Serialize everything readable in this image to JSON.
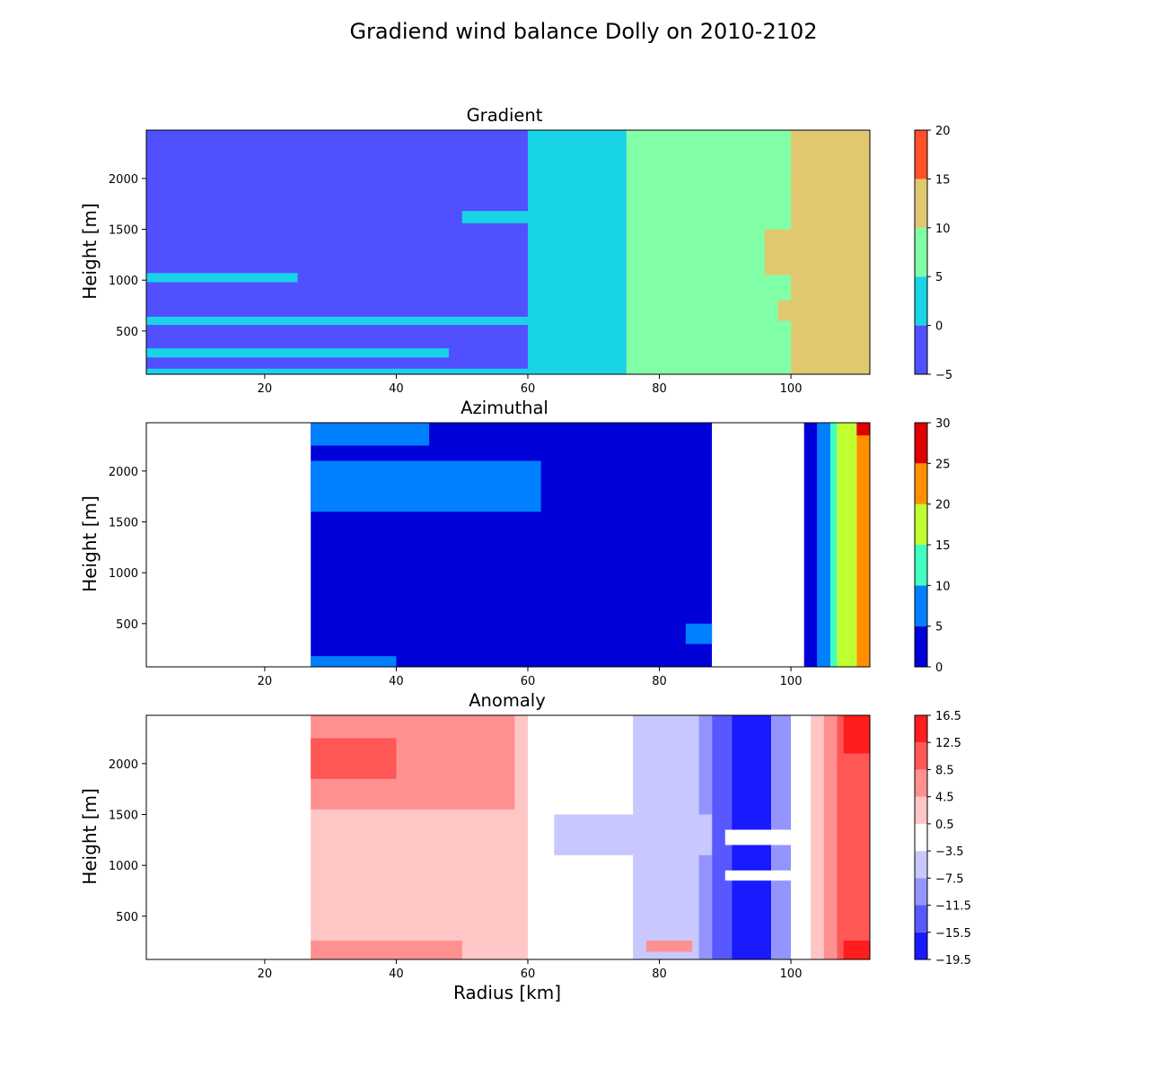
{
  "suptitle": "Gradiend wind balance Dolly on 2010-2102",
  "chart_data": [
    {
      "type": "heatmap",
      "title": "Gradient",
      "ylabel": "Height [m]",
      "xlabel": "",
      "xlim": [
        2,
        112
      ],
      "ylim": [
        75,
        2475
      ],
      "xticks": [
        20,
        40,
        60,
        80,
        100
      ],
      "yticks": [
        500,
        1000,
        1500,
        2000
      ],
      "colorbar": {
        "ticks": [
          "−5",
          "0",
          "5",
          "10",
          "15",
          "20"
        ],
        "colors": [
          "#5050ff",
          "#19d3e6",
          "#80ffa6",
          "#e0c870",
          "#ff5028"
        ]
      },
      "bands": [
        {
          "to": 60,
          "level": 0
        },
        {
          "to": 75,
          "level": 1
        },
        {
          "to": 100,
          "level": 2
        },
        {
          "to": 112,
          "level": 3
        }
      ],
      "blobs": [
        {
          "x": [
            2,
            63
          ],
          "y": [
            80,
            130
          ],
          "level": 1
        },
        {
          "x": [
            2,
            48
          ],
          "y": [
            240,
            330
          ],
          "level": 1
        },
        {
          "x": [
            2,
            60
          ],
          "y": [
            560,
            640
          ],
          "level": 1
        },
        {
          "x": [
            2,
            25
          ],
          "y": [
            980,
            1070
          ],
          "level": 1
        },
        {
          "x": [
            50,
            70
          ],
          "y": [
            1560,
            1680
          ],
          "level": 1
        },
        {
          "x": [
            96,
            112
          ],
          "y": [
            1050,
            1500
          ],
          "level": 3
        },
        {
          "x": [
            98,
            112
          ],
          "y": [
            600,
            800
          ],
          "level": 3
        },
        {
          "x": [
            100,
            112
          ],
          "y": [
            1900,
            2100
          ],
          "level": 3
        }
      ]
    },
    {
      "type": "heatmap",
      "title": "Azimuthal",
      "ylabel": "Height [m]",
      "xlabel": "",
      "xlim": [
        2,
        112
      ],
      "ylim": [
        75,
        2475
      ],
      "xticks": [
        20,
        40,
        60,
        80,
        100
      ],
      "yticks": [
        500,
        1000,
        1500,
        2000
      ],
      "colorbar": {
        "ticks": [
          "0",
          "5",
          "10",
          "15",
          "20",
          "25",
          "30"
        ],
        "colors": [
          "#0000d8",
          "#0080ff",
          "#40ffc0",
          "#c0ff30",
          "#ff9000",
          "#e00000"
        ]
      },
      "no_data_below_x": 27,
      "bands": [
        {
          "to": 88,
          "level": 0
        },
        {
          "to": 102,
          "level": "none"
        },
        {
          "to": 104,
          "level": 0
        },
        {
          "to": 106,
          "level": 1
        },
        {
          "to": 107,
          "level": 2
        },
        {
          "to": 110,
          "level": 3
        },
        {
          "to": 112,
          "level": 4
        }
      ],
      "blobs": [
        {
          "x": [
            27,
            62
          ],
          "y": [
            1600,
            2100
          ],
          "level": 1
        },
        {
          "x": [
            27,
            45
          ],
          "y": [
            2250,
            2470
          ],
          "level": 1
        },
        {
          "x": [
            27,
            40
          ],
          "y": [
            75,
            180
          ],
          "level": 1
        },
        {
          "x": [
            84,
            88
          ],
          "y": [
            300,
            500
          ],
          "level": 1
        },
        {
          "x": [
            110,
            112
          ],
          "y": [
            2350,
            2475
          ],
          "level": 5
        }
      ]
    },
    {
      "type": "heatmap",
      "title": "Anomaly",
      "ylabel": "Height [m]",
      "xlabel": "Radius [km]",
      "xlim": [
        2,
        112
      ],
      "ylim": [
        75,
        2475
      ],
      "xticks": [
        20,
        40,
        60,
        80,
        100
      ],
      "yticks": [
        500,
        1000,
        1500,
        2000
      ],
      "colorbar": {
        "ticks": [
          "−19.5",
          "−15.5",
          "−11.5",
          "−7.5",
          "−3.5",
          "0.5",
          "4.5",
          "8.5",
          "12.5",
          "16.5"
        ],
        "colors": [
          "#1a1aff",
          "#5858ff",
          "#9494ff",
          "#c8c8ff",
          "#ffffff",
          "#ffc6c6",
          "#ff9090",
          "#ff5656",
          "#ff1c1c"
        ]
      },
      "no_data_below_x": 27,
      "bands": [
        {
          "to": 60,
          "level": 5
        },
        {
          "to": 76,
          "level": 4
        },
        {
          "to": 86,
          "level": 3
        },
        {
          "to": 88,
          "level": 2
        },
        {
          "to": 91,
          "level": 1
        },
        {
          "to": 97,
          "level": 0
        },
        {
          "to": 100,
          "level": 2
        },
        {
          "to": 103,
          "level": 4
        },
        {
          "to": 105,
          "level": 5
        },
        {
          "to": 107,
          "level": 6
        },
        {
          "to": 112,
          "level": 7
        }
      ],
      "blobs": [
        {
          "x": [
            27,
            58
          ],
          "y": [
            1550,
            2475
          ],
          "level": 6
        },
        {
          "x": [
            27,
            40
          ],
          "y": [
            1850,
            2250
          ],
          "level": 7
        },
        {
          "x": [
            27,
            50
          ],
          "y": [
            75,
            260
          ],
          "level": 6
        },
        {
          "x": [
            64,
            88
          ],
          "y": [
            1100,
            1500
          ],
          "level": 3
        },
        {
          "x": [
            90,
            100
          ],
          "y": [
            1200,
            1350
          ],
          "level": 4
        },
        {
          "x": [
            90,
            100
          ],
          "y": [
            850,
            950
          ],
          "level": 4
        },
        {
          "x": [
            78,
            85
          ],
          "y": [
            150,
            260
          ],
          "level": 6
        },
        {
          "x": [
            108,
            112
          ],
          "y": [
            2100,
            2475
          ],
          "level": 8
        },
        {
          "x": [
            108,
            112
          ],
          "y": [
            75,
            260
          ],
          "level": 8
        }
      ]
    }
  ]
}
